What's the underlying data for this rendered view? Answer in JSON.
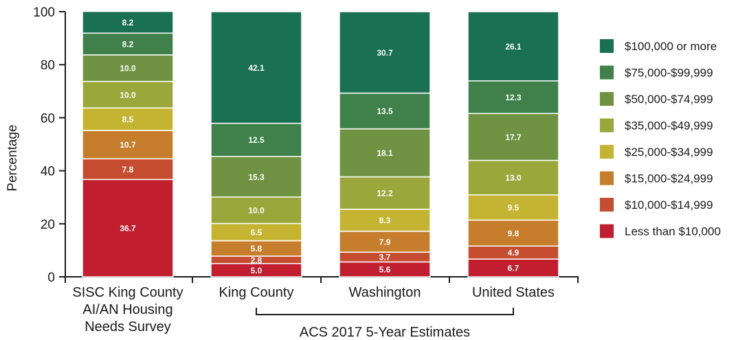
{
  "chart_data": {
    "type": "bar",
    "stacked": true,
    "ylabel": "Percentage",
    "ylim": [
      0,
      100
    ],
    "yticks": [
      0,
      20,
      40,
      60,
      80,
      100
    ],
    "grid": false,
    "legend_position": "right",
    "categories": [
      [
        "SISC King County",
        "AI/AN Housing",
        "Needs Survey"
      ],
      [
        "King County"
      ],
      [
        "Washington"
      ],
      [
        "United States"
      ]
    ],
    "group_label": "ACS 2017 5-Year Estimates",
    "series": [
      {
        "name": "Less than $10,000",
        "color": "#c11f30",
        "values": [
          36.7,
          5.0,
          5.6,
          6.7
        ]
      },
      {
        "name": "$10,000-$14,999",
        "color": "#c64d30",
        "values": [
          7.8,
          2.8,
          3.7,
          4.9
        ]
      },
      {
        "name": "$15,000-$24,999",
        "color": "#c67e2d",
        "values": [
          10.7,
          5.8,
          7.9,
          9.8
        ]
      },
      {
        "name": "$25,000-$34,999",
        "color": "#c5b431",
        "values": [
          8.5,
          6.5,
          8.3,
          9.5
        ]
      },
      {
        "name": "$35,000-$49,999",
        "color": "#9aa73b",
        "values": [
          10.0,
          10.0,
          12.2,
          13.0
        ]
      },
      {
        "name": "$50,000-$74,999",
        "color": "#6f9343",
        "values": [
          10.0,
          15.3,
          18.1,
          17.7
        ]
      },
      {
        "name": "$75,000-$99,999",
        "color": "#3f804b",
        "values": [
          8.2,
          12.5,
          13.5,
          12.3
        ]
      },
      {
        "name": "$100,000 or more",
        "color": "#1a7053",
        "values": [
          8.2,
          42.1,
          30.7,
          26.1
        ]
      }
    ]
  }
}
